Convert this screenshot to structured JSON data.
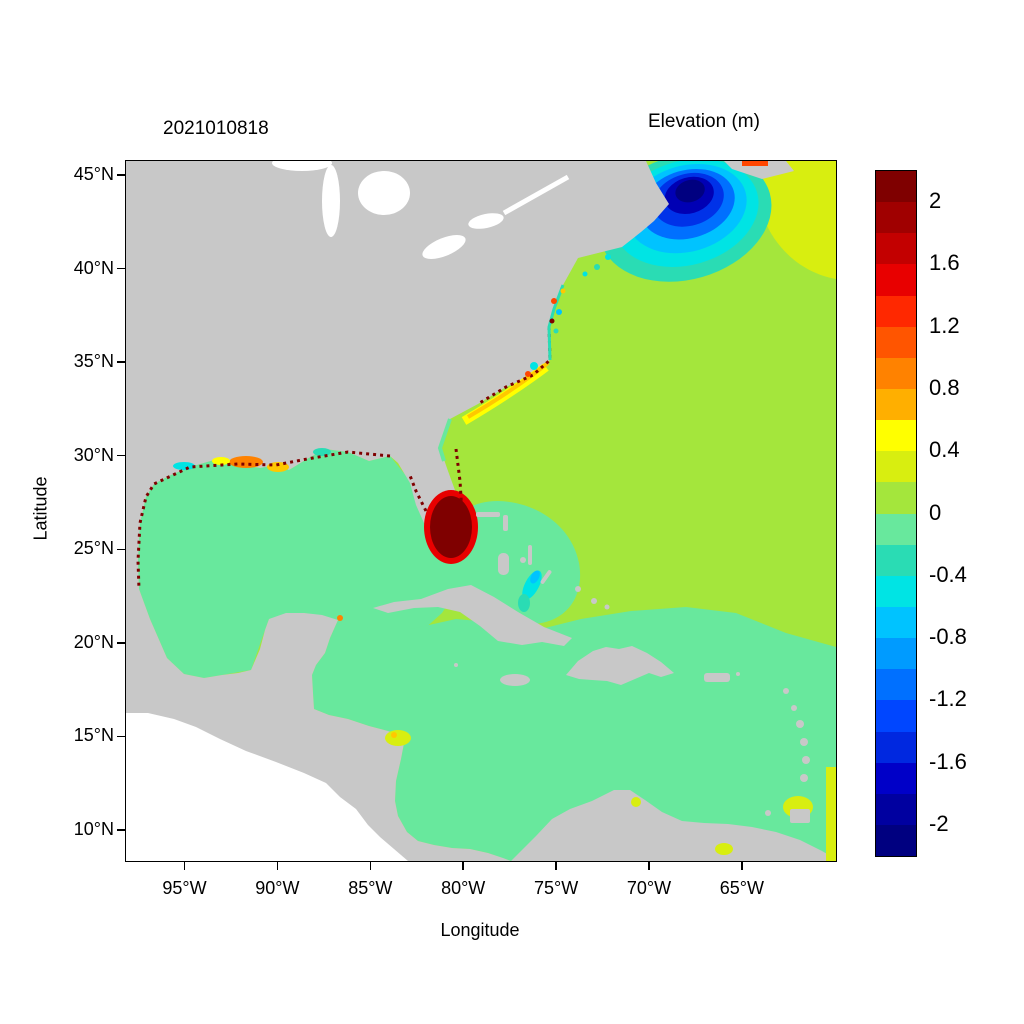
{
  "figure": {
    "run_label": "2021010818",
    "colorbar_title": "Elevation (m)",
    "xlabel": "Longitude",
    "ylabel": "Latitude"
  },
  "colors": {
    "land": "#c8c8c8",
    "nodata": "#ffffff",
    "atlantic": "#a4e63c",
    "mint": "#68e89d",
    "yellow": "#ffff00",
    "yellowgreen": "#d8ee10",
    "amber": "#ffc800",
    "orange": "#ff8200",
    "redorange": "#ff4600",
    "red": "#e80000",
    "darkred": "#7f0000",
    "turquoise": "#2adcb4",
    "cyan": "#00e4e4",
    "lightblue": "#00c3ff",
    "blue": "#0070ff",
    "deepblue": "#0032e8",
    "navy": "#0000b4",
    "darknavy": "#000080"
  },
  "chart_data": {
    "type": "heatmap",
    "title": "2021010818",
    "colorbar_label": "Elevation (m)",
    "xlabel": "Longitude",
    "ylabel": "Latitude",
    "x_ticks": [
      "95°W",
      "90°W",
      "85°W",
      "80°W",
      "75°W",
      "70°W",
      "65°W"
    ],
    "y_ticks": [
      "45°N",
      "40°N",
      "35°N",
      "30°N",
      "25°N",
      "20°N",
      "15°N",
      "10°N"
    ],
    "lon_range_deg_west": [
      98.2,
      60.1
    ],
    "lat_range_deg_north": [
      8.4,
      45.8
    ],
    "grid": false,
    "legend_position": "right-colorbar",
    "colorbar": {
      "range": [
        -2.2,
        2.2
      ],
      "bin_width": 0.2,
      "tick_labels": [
        "2",
        "1.6",
        "1.2",
        "0.8",
        "0.4",
        "0",
        "-0.4",
        "-0.8",
        "-1.2",
        "-1.6",
        "-2"
      ],
      "colors_top_to_bottom": [
        "#7f0000",
        "#a00000",
        "#c30000",
        "#e80000",
        "#ff2800",
        "#ff5500",
        "#ff8200",
        "#ffaf00",
        "#ffff00",
        "#d8ee10",
        "#a4e63c",
        "#68e89d",
        "#2adcb4",
        "#00e4e4",
        "#00c3ff",
        "#009bff",
        "#0070ff",
        "#0046ff",
        "#0028e0",
        "#0000c8",
        "#0000a0",
        "#000080"
      ]
    },
    "field_values": [
      {
        "region": "Open North Atlantic",
        "elevation_m": 0.1
      },
      {
        "region": "Gulf of Mexico interior",
        "elevation_m": -0.1
      },
      {
        "region": "Caribbean Sea",
        "elevation_m": -0.1
      },
      {
        "region": "Gulf of Maine / Bay of Fundy anomaly (dark blue core)",
        "elevation_m": -2.0
      },
      {
        "region": "South Florida coastal blob (dark red)",
        "elevation_m": 2.0
      },
      {
        "region": "Northern Gulf coast LA-MS-AL shelf cells",
        "elevation_m": 0.8
      },
      {
        "region": "Carolinas nearshore band",
        "elevation_m": 0.5
      },
      {
        "region": "Upper-right corner / Scotian shelf",
        "elevation_m": 0.3
      },
      {
        "region": "Bahamas cyan streak",
        "elevation_m": -0.7
      },
      {
        "region": "Honduras coast spot",
        "elevation_m": 0.3
      },
      {
        "region": "Trinidad / SE corner spots",
        "elevation_m": 0.3
      },
      {
        "region": "Land mask (gray)",
        "elevation_m": null
      },
      {
        "region": "Pacific lower-left (white, outside model domain)",
        "elevation_m": null
      }
    ]
  }
}
